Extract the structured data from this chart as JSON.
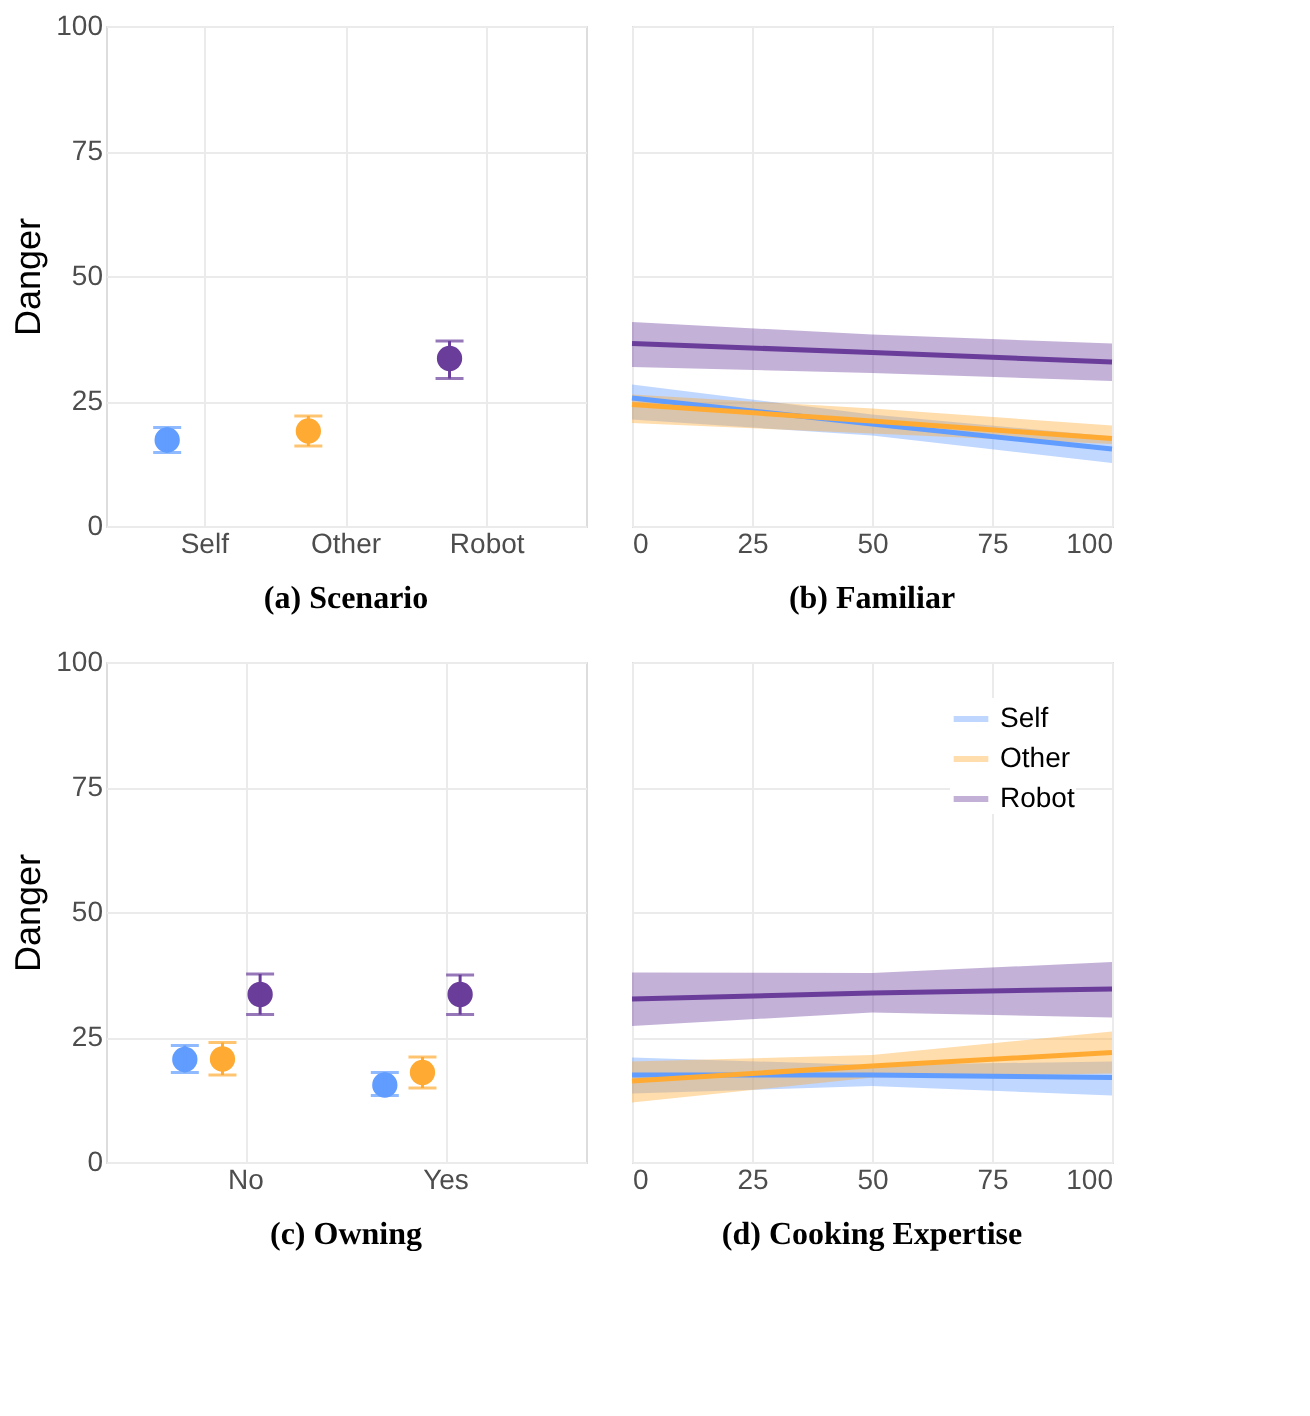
{
  "chart_data": [
    {
      "type": "scatter",
      "title": "(a) Scenario",
      "ylabel": "Danger",
      "categories": [
        "Self",
        "Other",
        "Robot"
      ],
      "values": [
        17.2,
        19,
        33.5
      ],
      "colors": [
        "#619cff",
        "#ffab33",
        "#6a3d9a"
      ],
      "errors": [
        [
          14.7,
          19.7
        ],
        [
          16,
          22
        ],
        [
          29.5,
          37
        ]
      ],
      "ylim": [
        0,
        100
      ],
      "yticks": [
        0,
        25,
        50,
        75,
        100
      ],
      "grid": true,
      "marker": "circle"
    },
    {
      "type": "line",
      "title": "(b) Familiar",
      "x": [
        0,
        50,
        100
      ],
      "xlim": [
        0,
        100
      ],
      "xticks": [
        0,
        25,
        50,
        75,
        100
      ],
      "ylim": [
        0,
        100
      ],
      "yticks": [
        0,
        25,
        50,
        75,
        100
      ],
      "grid": true,
      "tick_labels": "x",
      "series": [
        {
          "color": "#619cff",
          "values": [
            25.6,
            20.4,
            15.4
          ],
          "lower": [
            21.3,
            18.1,
            12.6
          ],
          "upper": [
            28.3,
            22.3,
            17.9
          ]
        },
        {
          "color": "#ffab33",
          "values": [
            24.3,
            21,
            17.5
          ],
          "lower": [
            20.6,
            18.5,
            16.4
          ],
          "upper": [
            26.3,
            23.5,
            20.1
          ]
        },
        {
          "color": "#6a3d9a",
          "values": [
            36.5,
            34.7,
            32.8
          ],
          "lower": [
            31.8,
            30.6,
            29
          ],
          "upper": [
            40.8,
            38.3,
            36.5
          ]
        }
      ]
    },
    {
      "type": "scatter",
      "title": "(c) Owning",
      "ylabel": "Danger",
      "categories": [
        "No",
        "Yes"
      ],
      "ylim": [
        0,
        100
      ],
      "yticks": [
        0,
        25,
        50,
        75,
        100
      ],
      "grid": true,
      "marker": "circle",
      "series": [
        {
          "color": "#619cff",
          "values": [
            20.5,
            15.4
          ],
          "errors": [
            [
              17.9,
              23.3
            ],
            [
              13.3,
              17.9
            ]
          ]
        },
        {
          "color": "#ffab33",
          "values": [
            20.6,
            17.9
          ],
          "errors": [
            [
              17.4,
              23.9
            ],
            [
              14.8,
              21
            ]
          ]
        },
        {
          "color": "#6a3d9a",
          "values": [
            33.5,
            33.5
          ],
          "errors": [
            [
              29.5,
              37.6
            ],
            [
              29.5,
              37.4
            ]
          ]
        }
      ]
    },
    {
      "type": "line",
      "title": "(d) Cooking Expertise",
      "x": [
        0,
        50,
        100
      ],
      "xlim": [
        0,
        100
      ],
      "xticks": [
        0,
        25,
        50,
        75,
        100
      ],
      "ylim": [
        0,
        100
      ],
      "yticks": [
        0,
        25,
        50,
        75,
        100
      ],
      "grid": true,
      "tick_labels": "x",
      "legend": "top right",
      "series": [
        {
          "name": "Self",
          "color": "#619cff",
          "values": [
            17.4,
            17.4,
            16.9
          ],
          "lower": [
            13.7,
            15.2,
            13.3
          ],
          "upper": [
            20.9,
            19.4,
            20.1
          ]
        },
        {
          "name": "Other",
          "color": "#ffab33",
          "values": [
            16.2,
            19.2,
            21.9
          ],
          "lower": [
            11.9,
            16.9,
            17.7
          ],
          "upper": [
            20.1,
            21.4,
            26.1
          ]
        },
        {
          "name": "Robot",
          "color": "#6a3d9a",
          "values": [
            32.6,
            33.8,
            34.6
          ],
          "lower": [
            27.2,
            29.9,
            28.9
          ],
          "upper": [
            37.9,
            37.8,
            40
          ]
        }
      ]
    }
  ]
}
